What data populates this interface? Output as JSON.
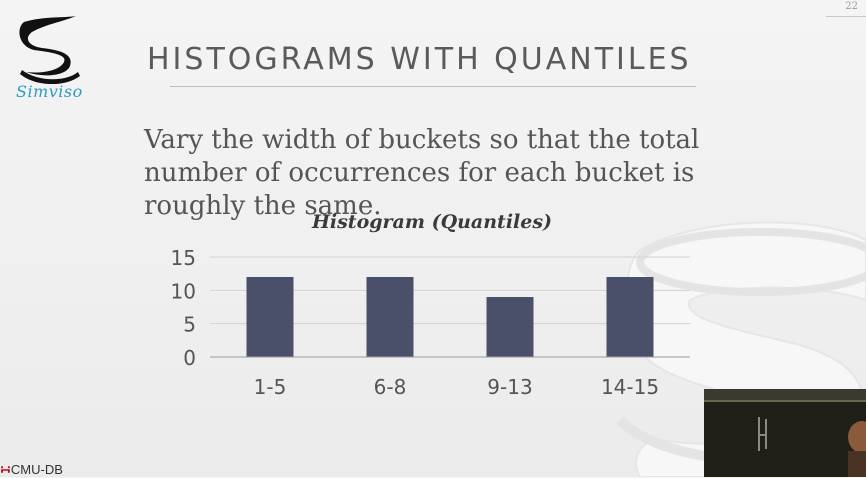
{
  "slide": {
    "page_number": "22",
    "title": "HISTOGRAMS WITH QUANTILES",
    "body": "Vary the width of buckets so that the total number of occurrences for each bucket is roughly the same.",
    "logo_text": "Simviso",
    "footer_logo": "CMU-DB"
  },
  "chart_data": {
    "type": "bar",
    "title": "Histogram (Quantiles)",
    "categories": [
      "1-5",
      "6-8",
      "9-13",
      "14-15"
    ],
    "values": [
      12,
      12,
      9,
      12
    ],
    "yticks": [
      "0",
      "5",
      "10",
      "15"
    ],
    "ylim": [
      0,
      15
    ],
    "xlabel": "",
    "ylabel": "",
    "grid": true,
    "bar_color": "#4a5069"
  },
  "colors": {
    "title": "#5a5a5a",
    "logo_accent": "#2a9cc2",
    "footer_mark": "#b5121b"
  }
}
